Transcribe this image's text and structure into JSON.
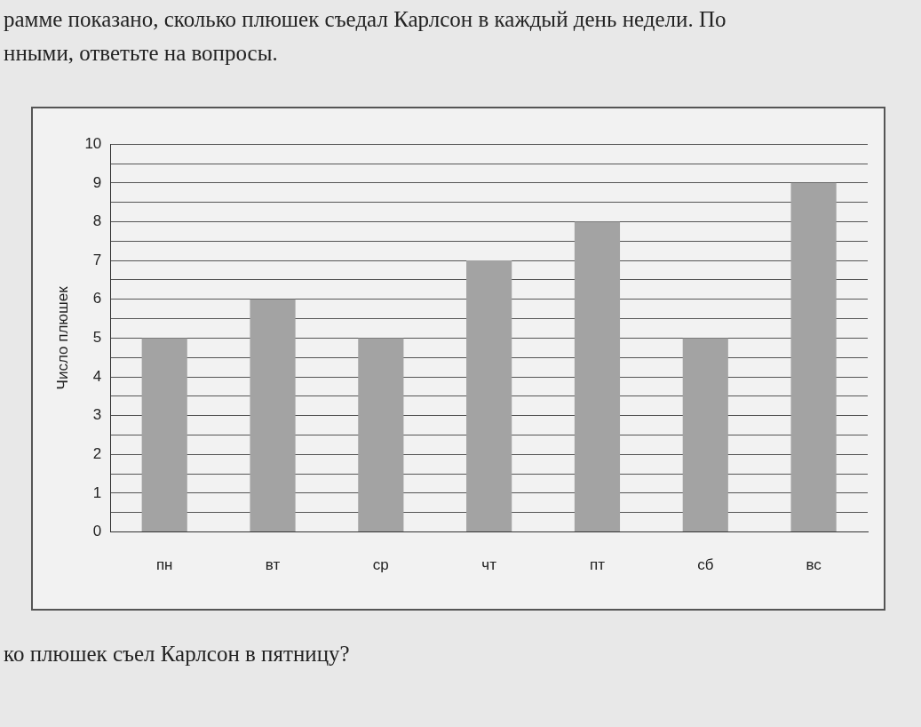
{
  "chart_data": {
    "type": "bar",
    "title": "рамме показано, сколько плюшек съедал Карлсон в каждый день недели. По",
    "subtitle": "нными, ответьте на вопросы.",
    "annotations": [
      "ко плюшек съел Карлсон в пятницу?"
    ],
    "ylabel": "Число плюшек",
    "categories": [
      "пн",
      "вт",
      "ср",
      "чт",
      "пт",
      "сб",
      "вс"
    ],
    "values": [
      5,
      6,
      5,
      7,
      8,
      5,
      9
    ],
    "color": "#a3a3a3",
    "ylim": [
      0,
      10
    ],
    "yticks": [
      0,
      {
        "value": 0.5,
        "label": null
      },
      1,
      {
        "value": 1.5,
        "label": null
      },
      2,
      {
        "value": 2.5,
        "label": null
      },
      3,
      {
        "value": 3.5,
        "label": null
      },
      4,
      {
        "value": 4.5,
        "label": null
      },
      5,
      {
        "value": 5.5,
        "label": null
      },
      6,
      {
        "value": 6.5,
        "label": null
      },
      7,
      {
        "value": 7.5,
        "label": null
      },
      8,
      {
        "value": 8.5,
        "label": null
      },
      9,
      {
        "value": 9.5,
        "label": null
      },
      10
    ],
    "grid": "y",
    "legend": false
  }
}
